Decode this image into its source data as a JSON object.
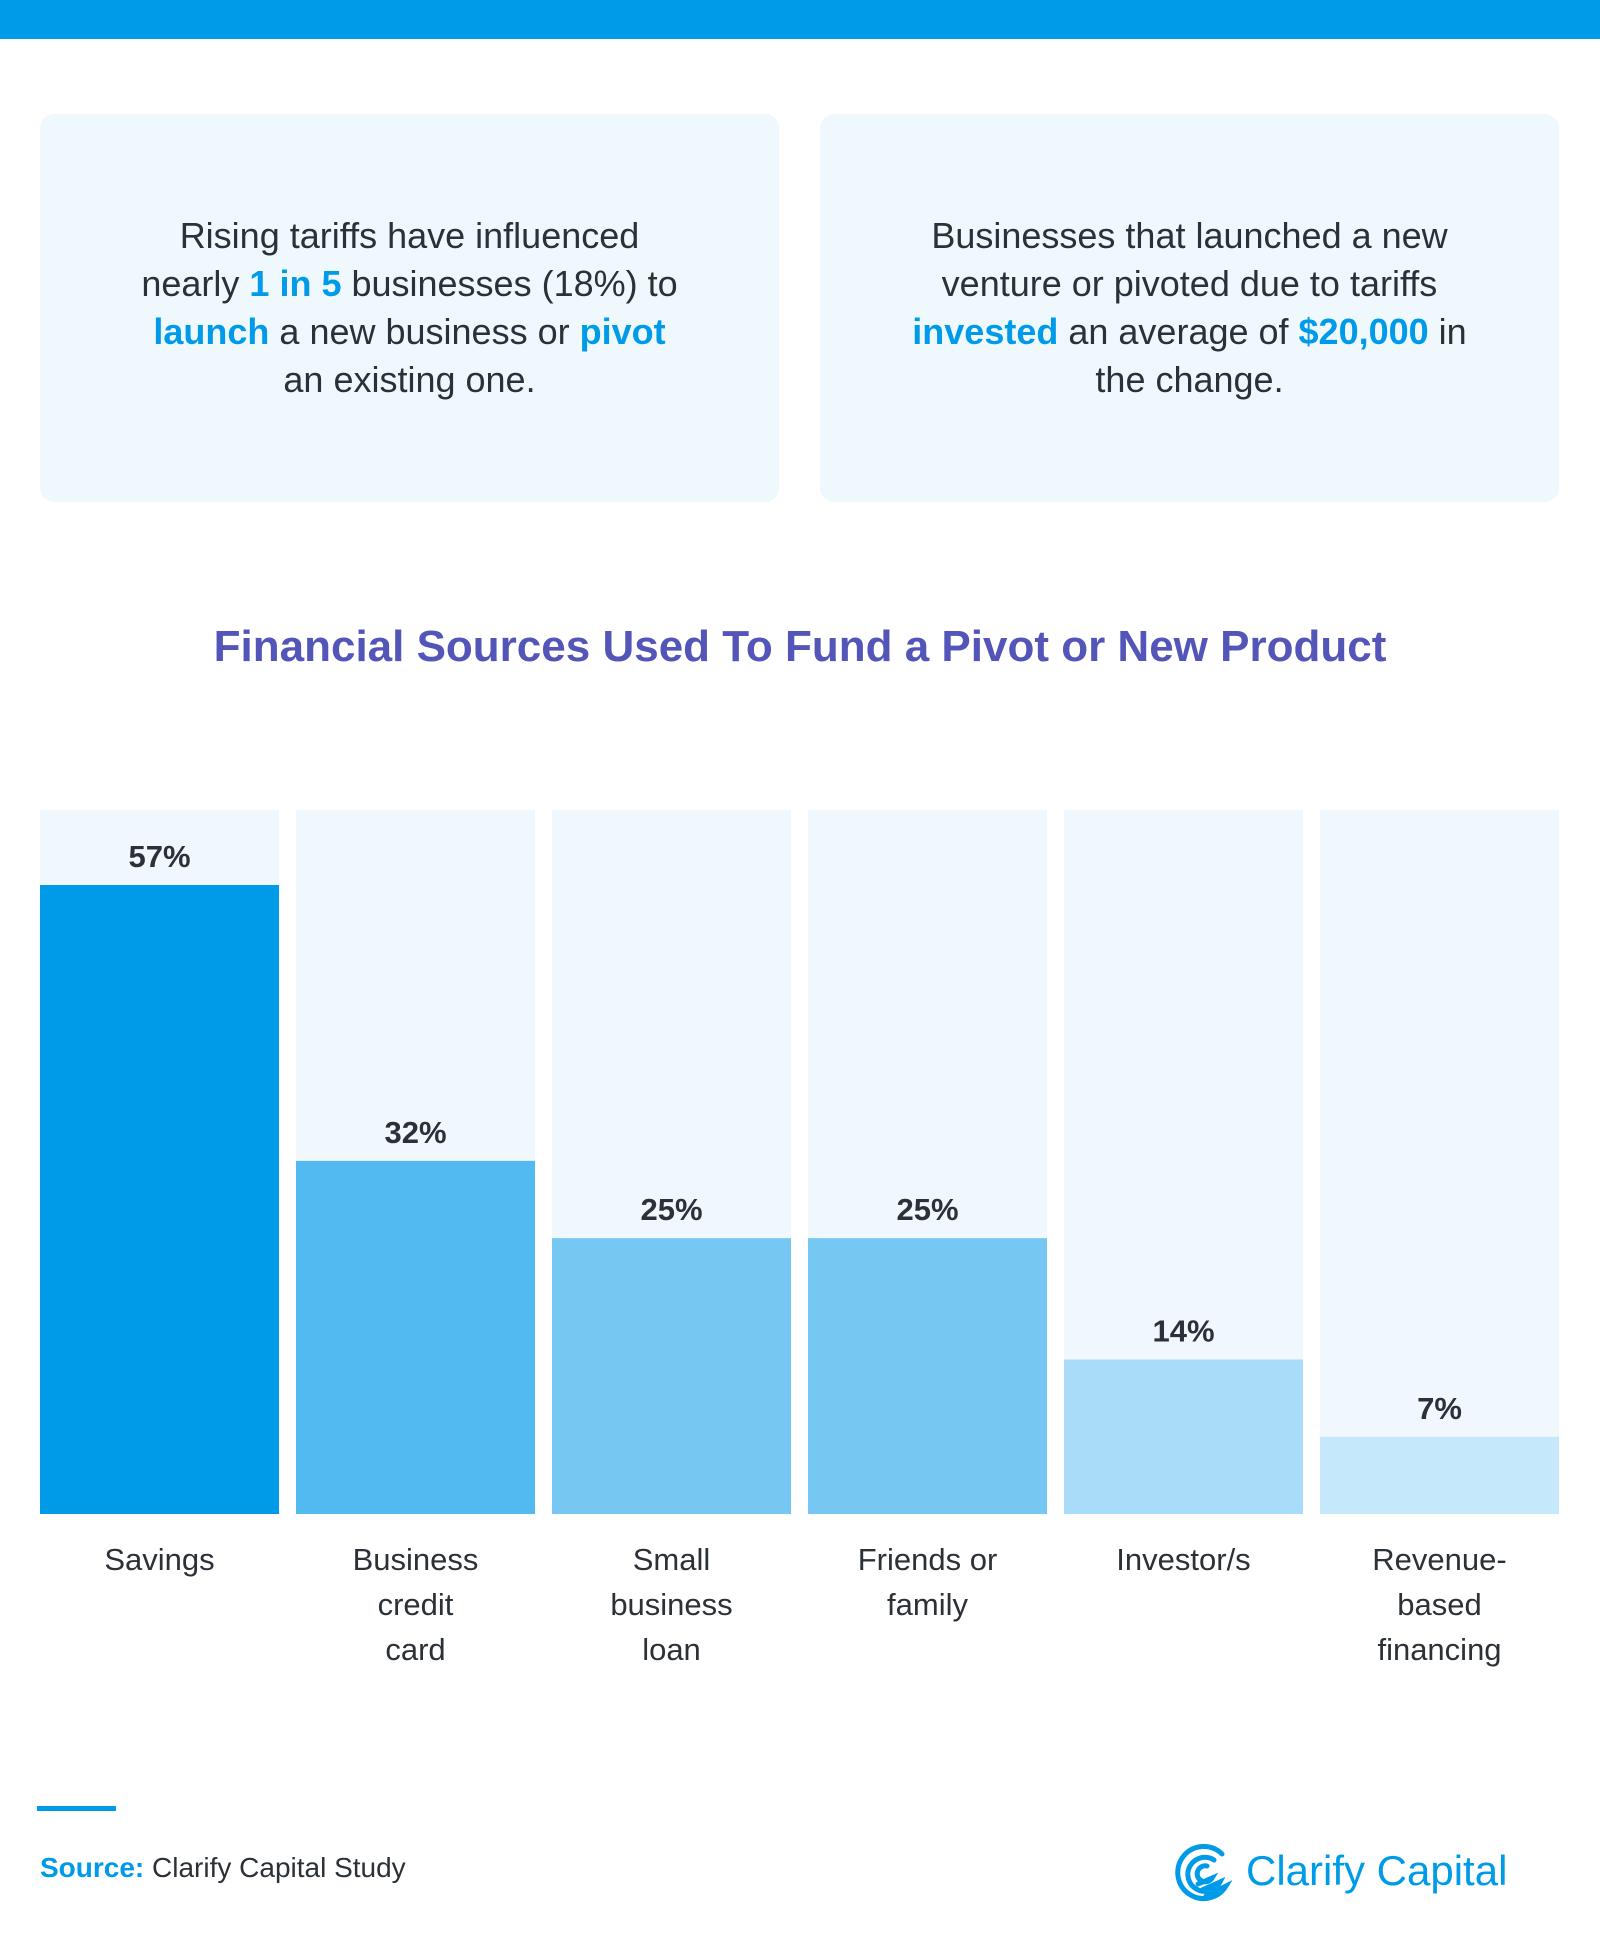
{
  "colors": {
    "accent": "#009BE8",
    "title": "#5455B8",
    "column_bg": "#F0F8FD",
    "text": "#2B3136"
  },
  "stats": [
    {
      "parts": [
        {
          "t": "Rising tariffs have influenced nearly "
        },
        {
          "t": "1 in 5",
          "hl": true
        },
        {
          "t": " businesses (18%) to "
        },
        {
          "t": "launch",
          "hl": true
        },
        {
          "t": " a new business or "
        },
        {
          "t": "pivot",
          "hl": true
        },
        {
          "t": " an existing one."
        }
      ]
    },
    {
      "parts": [
        {
          "t": "Businesses that launched a new venture or pivoted due to tariffs "
        },
        {
          "t": "invested",
          "hl": true
        },
        {
          "t": " an average of "
        },
        {
          "t": "$20,000",
          "hl": true
        },
        {
          "t": " in the change."
        }
      ]
    }
  ],
  "chart_data": {
    "type": "bar",
    "title": "Financial Sources Used To Fund a Pivot or New Product",
    "categories": [
      [
        "Savings"
      ],
      [
        "Business",
        "credit",
        "card"
      ],
      [
        "Small",
        "business",
        "loan"
      ],
      [
        "Friends or",
        "family"
      ],
      [
        "Investor/s"
      ],
      [
        "Revenue-",
        "based",
        "financing"
      ]
    ],
    "values": [
      57,
      32,
      25,
      25,
      14,
      7
    ],
    "value_labels": [
      "57%",
      "32%",
      "25%",
      "25%",
      "14%",
      "7%"
    ],
    "bar_colors": [
      "#009BE8",
      "#52BAF0",
      "#76C8F3",
      "#76C8F3",
      "#A8DCF8",
      "#C5E8FA"
    ],
    "xlabel": "",
    "ylabel": "",
    "grid": false
  },
  "footer": {
    "source_label": "Source:",
    "source_text": " Clarify Capital Study",
    "logo_text": "Clarify Capital",
    "logo_icon": "clarify-capital-logo-icon"
  }
}
